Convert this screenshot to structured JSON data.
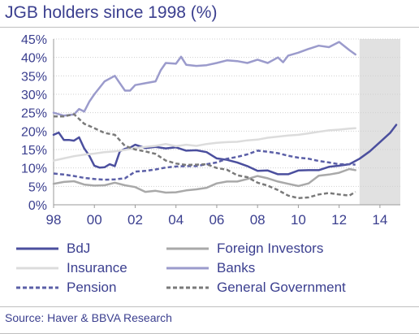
{
  "title": "JGB holders since 1998 (%)",
  "source": "Source: Haver & BBVA Research",
  "chart_data": {
    "type": "line",
    "title": "JGB holders since 1998 (%)",
    "xlabel": "",
    "ylabel": "",
    "x_range": [
      1998,
      2015
    ],
    "ylim": [
      0,
      45
    ],
    "y_ticks": [
      "0%",
      "5%",
      "10%",
      "15%",
      "20%",
      "25%",
      "30%",
      "35%",
      "40%",
      "45%"
    ],
    "x_ticks": [
      "98",
      "00",
      "02",
      "04",
      "06",
      "08",
      "10",
      "12",
      "14"
    ],
    "x_tick_values": [
      1998,
      2000,
      2002,
      2004,
      2006,
      2008,
      2010,
      2012,
      2014
    ],
    "shaded_region": [
      2013,
      2015
    ],
    "grid": true,
    "legend_position": "bottom",
    "series": [
      {
        "name": "BdJ",
        "color": "#4b4f9e",
        "dash": "solid",
        "x": [
          1998.0,
          1998.25,
          1998.5,
          1998.75,
          1999.0,
          1999.25,
          1999.5,
          1999.75,
          2000.0,
          2000.25,
          2000.5,
          2000.75,
          2001.0,
          2001.25,
          2001.5,
          2001.75,
          2002.0,
          2002.5,
          2003.0,
          2003.5,
          2004.0,
          2004.5,
          2005.0,
          2005.5,
          2006.0,
          2006.5,
          2007.0,
          2007.5,
          2008.0,
          2008.5,
          2009.0,
          2009.5,
          2010.0,
          2010.5,
          2011.0,
          2011.5,
          2012.0,
          2012.5,
          2013.0,
          2013.5,
          2014.0,
          2014.5,
          2014.8
        ],
        "y": [
          19,
          19.6,
          17.6,
          17.6,
          17.4,
          18.3,
          15.3,
          13.3,
          10.6,
          10.1,
          10.2,
          11,
          10.5,
          14.5,
          15.2,
          15.5,
          16.3,
          15.4,
          15.7,
          15.3,
          15.6,
          14.7,
          14.8,
          14.3,
          12.6,
          12.2,
          11.5,
          10.5,
          9.2,
          9.3,
          8.3,
          8.3,
          9.3,
          9.4,
          9.4,
          10.3,
          10.6,
          11,
          12.5,
          14.5,
          17,
          19.5,
          21.7
        ]
      },
      {
        "name": "Foreign Investors",
        "color": "#a9a9a9",
        "dash": "solid",
        "x": [
          1998.0,
          1998.5,
          1999.0,
          1999.5,
          2000.0,
          2000.5,
          2001.0,
          2001.5,
          2002.0,
          2002.5,
          2003.0,
          2003.5,
          2004.0,
          2004.5,
          2005.0,
          2005.5,
          2006.0,
          2006.5,
          2007.0,
          2007.5,
          2008.0,
          2008.5,
          2009.0,
          2009.5,
          2010.0,
          2010.5,
          2011.0,
          2011.5,
          2012.0,
          2012.5,
          2012.8
        ],
        "y": [
          5.7,
          6.2,
          6.4,
          5.5,
          5.2,
          5.3,
          6,
          5.3,
          4.8,
          3.5,
          3.8,
          3.3,
          3.4,
          3.9,
          4.2,
          4.6,
          5.8,
          6.3,
          6.3,
          7,
          7.8,
          7.2,
          6.3,
          5.7,
          5.1,
          5.8,
          7.9,
          8.2,
          8.7,
          9.7,
          9.4
        ]
      },
      {
        "name": "Insurance",
        "color": "#dcdcdc",
        "dash": "solid",
        "x": [
          1998.0,
          1998.5,
          1999.0,
          1999.5,
          2000.0,
          2000.5,
          2001.0,
          2001.5,
          2002.0,
          2002.5,
          2003.0,
          2003.5,
          2004.0,
          2004.5,
          2005.0,
          2005.5,
          2006.0,
          2006.5,
          2007.0,
          2007.5,
          2008.0,
          2008.5,
          2009.0,
          2009.5,
          2010.0,
          2010.5,
          2011.0,
          2011.5,
          2012.0,
          2012.5,
          2012.8
        ],
        "y": [
          12,
          12.6,
          13.2,
          13.6,
          13.9,
          14.3,
          14.5,
          14.9,
          15.4,
          15.7,
          16,
          16.5,
          15.9,
          16.3,
          16,
          16.5,
          16.8,
          17,
          17.1,
          17.5,
          17.7,
          18.2,
          18.5,
          18.8,
          19,
          19.4,
          19.8,
          20.2,
          20.4,
          20.7,
          20.8
        ]
      },
      {
        "name": "Banks",
        "color": "#9b9bcc",
        "dash": "solid",
        "x": [
          1998.0,
          1998.5,
          1999.0,
          1999.25,
          1999.5,
          1999.75,
          2000.0,
          2000.5,
          2001.0,
          2001.25,
          2001.5,
          2001.75,
          2002.0,
          2002.5,
          2003.0,
          2003.25,
          2003.5,
          2004.0,
          2004.25,
          2004.5,
          2005.0,
          2005.5,
          2006.0,
          2006.5,
          2007.0,
          2007.5,
          2008.0,
          2008.5,
          2009.0,
          2009.25,
          2009.5,
          2010.0,
          2010.5,
          2011.0,
          2011.5,
          2012.0,
          2012.25,
          2012.5,
          2012.8
        ],
        "y": [
          25,
          24.2,
          24.5,
          26,
          25.3,
          28,
          30,
          33.5,
          35,
          33,
          31,
          31,
          32.5,
          33,
          33.5,
          36.5,
          38.5,
          38.3,
          40.2,
          38,
          37.7,
          37.9,
          38.5,
          39.2,
          39,
          38.5,
          39.4,
          38.5,
          40,
          38.7,
          40.5,
          41.3,
          42.3,
          43.2,
          42.8,
          44.2,
          43.1,
          42,
          40.8
        ]
      },
      {
        "name": "Pension",
        "color": "#5b5fa7",
        "dash": "dashed",
        "x": [
          1998.0,
          1998.5,
          1999.0,
          1999.5,
          2000.0,
          2000.5,
          2001.0,
          2001.5,
          2002.0,
          2002.5,
          2003.0,
          2003.5,
          2004.0,
          2004.5,
          2005.0,
          2005.5,
          2006.0,
          2006.5,
          2007.0,
          2007.5,
          2008.0,
          2008.5,
          2009.0,
          2009.5,
          2010.0,
          2010.5,
          2011.0,
          2011.5,
          2012.0,
          2012.5,
          2012.8
        ],
        "y": [
          8.5,
          8.2,
          7.8,
          7.3,
          7,
          6.8,
          6.9,
          7.2,
          9,
          9.2,
          9.6,
          10.1,
          10.4,
          10.5,
          10.5,
          11,
          11.5,
          12.5,
          13,
          13.7,
          14.7,
          14.4,
          14,
          13.3,
          12.8,
          12.5,
          11.9,
          11.5,
          11,
          11,
          10.9
        ]
      },
      {
        "name": "General Government",
        "color": "#7a7a7a",
        "dash": "dashed",
        "x": [
          1998.0,
          1998.5,
          1999.0,
          1999.5,
          2000.0,
          2000.5,
          2001.0,
          2001.5,
          2002.0,
          2002.5,
          2003.0,
          2003.5,
          2004.0,
          2004.5,
          2005.0,
          2005.5,
          2006.0,
          2006.5,
          2007.0,
          2007.5,
          2008.0,
          2008.5,
          2009.0,
          2009.5,
          2010.0,
          2010.5,
          2011.0,
          2011.5,
          2012.0,
          2012.5,
          2012.8
        ],
        "y": [
          24,
          24,
          24.6,
          22,
          20.8,
          19.5,
          19,
          16,
          15,
          14.5,
          13.8,
          12,
          11.2,
          10.8,
          10.9,
          11,
          10,
          9.5,
          8,
          7.5,
          6,
          5.2,
          4,
          2.5,
          1.8,
          2,
          2.8,
          3.2,
          2.8,
          2.5,
          3.5
        ]
      }
    ]
  },
  "legend": {
    "items": [
      {
        "label": "BdJ",
        "color": "#4b4f9e",
        "dash": "solid"
      },
      {
        "label": "Foreign Investors",
        "color": "#a9a9a9",
        "dash": "solid"
      },
      {
        "label": "Insurance",
        "color": "#dcdcdc",
        "dash": "solid"
      },
      {
        "label": "Banks",
        "color": "#9b9bcc",
        "dash": "solid"
      },
      {
        "label": "Pension",
        "color": "#5b5fa7",
        "dash": "dashed"
      },
      {
        "label": "General Government",
        "color": "#7a7a7a",
        "dash": "dashed"
      }
    ]
  }
}
